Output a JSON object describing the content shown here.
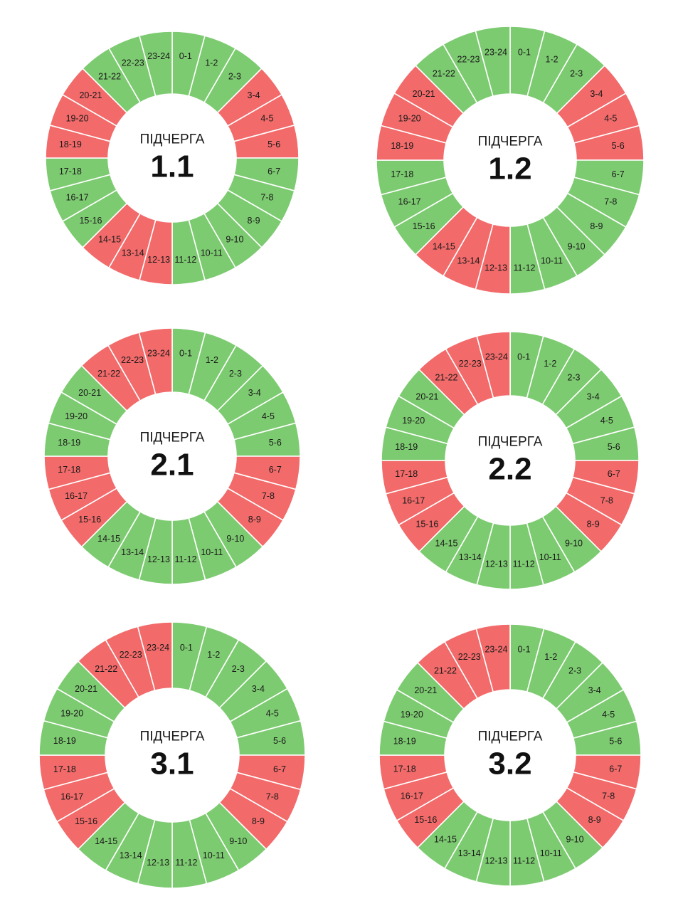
{
  "caption": "ПІДЧЕРГА",
  "colors": {
    "on": "#7dcb71",
    "off": "#f26a6a"
  },
  "hour_labels": [
    "0-1",
    "1-2",
    "2-3",
    "3-4",
    "4-5",
    "5-6",
    "6-7",
    "7-8",
    "8-9",
    "9-10",
    "10-11",
    "11-12",
    "12-13",
    "13-14",
    "14-15",
    "15-16",
    "16-17",
    "17-18",
    "18-19",
    "19-20",
    "20-21",
    "21-22",
    "22-23",
    "23-24"
  ],
  "chart_data": [
    {
      "type": "pie",
      "queue": "1.1",
      "categories": [
        "0-1",
        "1-2",
        "2-3",
        "3-4",
        "4-5",
        "5-6",
        "6-7",
        "7-8",
        "8-9",
        "9-10",
        "10-11",
        "11-12",
        "12-13",
        "13-14",
        "14-15",
        "15-16",
        "16-17",
        "17-18",
        "18-19",
        "19-20",
        "20-21",
        "21-22",
        "22-23",
        "23-24"
      ],
      "status": [
        "on",
        "on",
        "on",
        "off",
        "off",
        "off",
        "on",
        "on",
        "on",
        "on",
        "on",
        "on",
        "off",
        "off",
        "off",
        "on",
        "on",
        "on",
        "off",
        "off",
        "off",
        "on",
        "on",
        "on"
      ]
    },
    {
      "type": "pie",
      "queue": "1.2",
      "categories": [
        "0-1",
        "1-2",
        "2-3",
        "3-4",
        "4-5",
        "5-6",
        "6-7",
        "7-8",
        "8-9",
        "9-10",
        "10-11",
        "11-12",
        "12-13",
        "13-14",
        "14-15",
        "15-16",
        "16-17",
        "17-18",
        "18-19",
        "19-20",
        "20-21",
        "21-22",
        "22-23",
        "23-24"
      ],
      "status": [
        "on",
        "on",
        "on",
        "off",
        "off",
        "off",
        "on",
        "on",
        "on",
        "on",
        "on",
        "on",
        "off",
        "off",
        "off",
        "on",
        "on",
        "on",
        "off",
        "off",
        "off",
        "on",
        "on",
        "on"
      ]
    },
    {
      "type": "pie",
      "queue": "2.1",
      "categories": [
        "0-1",
        "1-2",
        "2-3",
        "3-4",
        "4-5",
        "5-6",
        "6-7",
        "7-8",
        "8-9",
        "9-10",
        "10-11",
        "11-12",
        "12-13",
        "13-14",
        "14-15",
        "15-16",
        "16-17",
        "17-18",
        "18-19",
        "19-20",
        "20-21",
        "21-22",
        "22-23",
        "23-24"
      ],
      "status": [
        "on",
        "on",
        "on",
        "on",
        "on",
        "on",
        "off",
        "off",
        "off",
        "on",
        "on",
        "on",
        "on",
        "on",
        "on",
        "off",
        "off",
        "off",
        "on",
        "on",
        "on",
        "off",
        "off",
        "off"
      ]
    },
    {
      "type": "pie",
      "queue": "2.2",
      "categories": [
        "0-1",
        "1-2",
        "2-3",
        "3-4",
        "4-5",
        "5-6",
        "6-7",
        "7-8",
        "8-9",
        "9-10",
        "10-11",
        "11-12",
        "12-13",
        "13-14",
        "14-15",
        "15-16",
        "16-17",
        "17-18",
        "18-19",
        "19-20",
        "20-21",
        "21-22",
        "22-23",
        "23-24"
      ],
      "status": [
        "on",
        "on",
        "on",
        "on",
        "on",
        "on",
        "off",
        "off",
        "off",
        "on",
        "on",
        "on",
        "on",
        "on",
        "on",
        "off",
        "off",
        "off",
        "on",
        "on",
        "on",
        "off",
        "off",
        "off"
      ]
    },
    {
      "type": "pie",
      "queue": "3.1",
      "categories": [
        "0-1",
        "1-2",
        "2-3",
        "3-4",
        "4-5",
        "5-6",
        "6-7",
        "7-8",
        "8-9",
        "9-10",
        "10-11",
        "11-12",
        "12-13",
        "13-14",
        "14-15",
        "15-16",
        "16-17",
        "17-18",
        "18-19",
        "19-20",
        "20-21",
        "21-22",
        "22-23",
        "23-24"
      ],
      "status": [
        "on",
        "on",
        "on",
        "on",
        "on",
        "on",
        "off",
        "off",
        "off",
        "on",
        "on",
        "on",
        "on",
        "on",
        "on",
        "off",
        "off",
        "off",
        "on",
        "on",
        "on",
        "off",
        "off",
        "off"
      ]
    },
    {
      "type": "pie",
      "queue": "3.2",
      "categories": [
        "0-1",
        "1-2",
        "2-3",
        "3-4",
        "4-5",
        "5-6",
        "6-7",
        "7-8",
        "8-9",
        "9-10",
        "10-11",
        "11-12",
        "12-13",
        "13-14",
        "14-15",
        "15-16",
        "16-17",
        "17-18",
        "18-19",
        "19-20",
        "20-21",
        "21-22",
        "22-23",
        "23-24"
      ],
      "status": [
        "on",
        "on",
        "on",
        "on",
        "on",
        "on",
        "off",
        "off",
        "off",
        "on",
        "on",
        "on",
        "on",
        "on",
        "on",
        "off",
        "off",
        "off",
        "on",
        "on",
        "on",
        "off",
        "off",
        "off"
      ]
    }
  ]
}
